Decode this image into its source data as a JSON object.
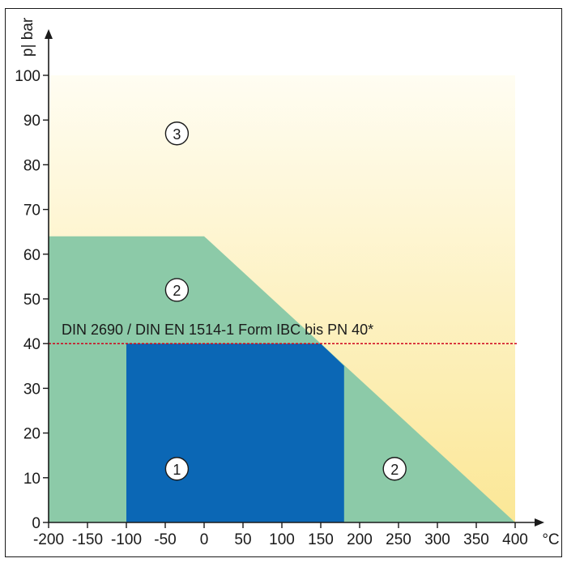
{
  "chart_data": {
    "type": "area",
    "xlabel": "°C",
    "ylabel": "p| bar",
    "xlim": [
      -200,
      400
    ],
    "ylim": [
      0,
      100
    ],
    "x_ticks": [
      -200,
      -150,
      -100,
      -50,
      0,
      50,
      100,
      150,
      200,
      250,
      300,
      350,
      400
    ],
    "y_ticks": [
      0,
      10,
      20,
      30,
      40,
      50,
      60,
      70,
      80,
      90,
      100
    ],
    "grid": false,
    "zones": [
      {
        "label": "3",
        "label_pos": [
          -35,
          87
        ],
        "color_top": "#fffdf2",
        "color_bottom": "#fbe796",
        "polygon": [
          [
            -200,
            0
          ],
          [
            -200,
            100
          ],
          [
            400,
            100
          ],
          [
            400,
            0
          ]
        ]
      },
      {
        "label": "2",
        "label_pos": [
          -35,
          52
        ],
        "label2": "2",
        "label2_pos": [
          245,
          12
        ],
        "color": "#8ccaa8",
        "polygon": [
          [
            -200,
            0
          ],
          [
            -200,
            64
          ],
          [
            0,
            64
          ],
          [
            400,
            0
          ]
        ]
      },
      {
        "label": "1",
        "label_pos": [
          -35,
          12
        ],
        "color": "#0b67b5",
        "polygon": [
          [
            -100,
            0
          ],
          [
            -100,
            40
          ],
          [
            150,
            40
          ],
          [
            180,
            35
          ],
          [
            180,
            0
          ]
        ]
      }
    ],
    "reference_line": {
      "y": 40,
      "label": "DIN 2690 / DIN EN 1514-1 Form IBC bis PN 40*",
      "color": "#d0021b"
    }
  }
}
